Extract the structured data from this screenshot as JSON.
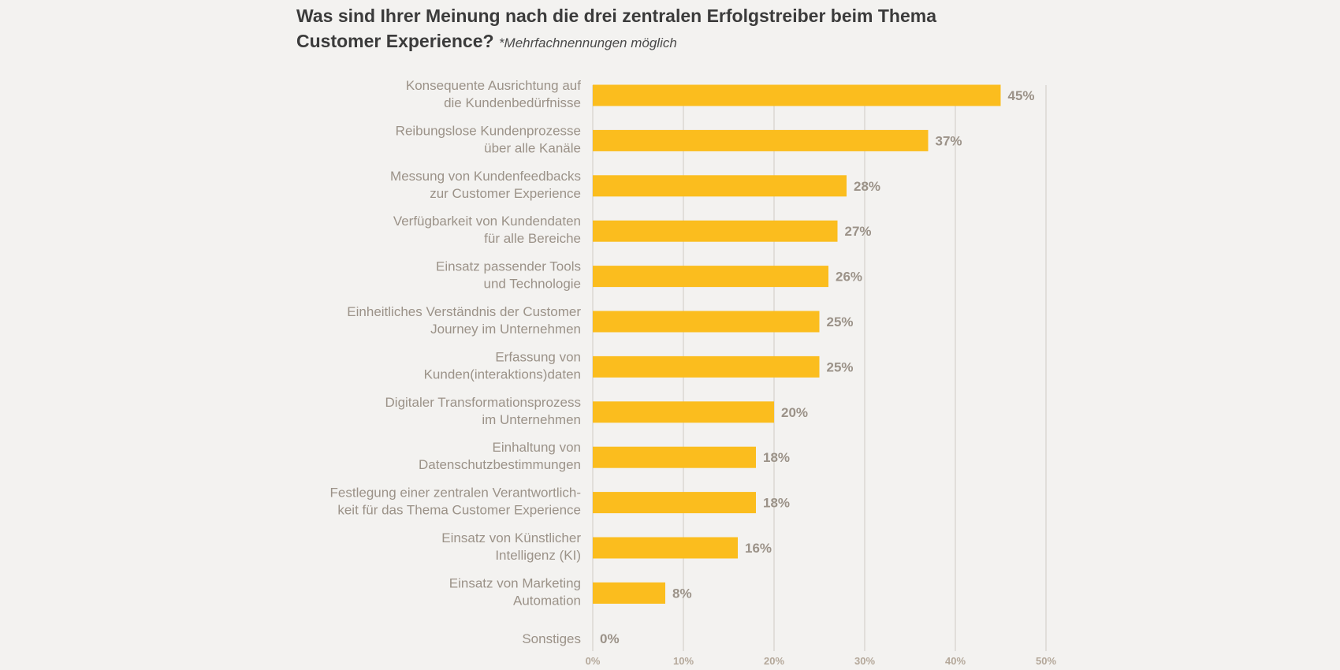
{
  "chart_data": {
    "type": "bar",
    "orientation": "horizontal",
    "title": "Was sind Ihrer Meinung nach die drei zentralen Erfolgstreiber beim Thema Customer Experience?",
    "subtitle": "*Mehrfachnennungen möglich",
    "categories": [
      [
        "Konsequente Ausrichtung auf",
        "die Kundenbedürfnisse"
      ],
      [
        "Reibungslose Kundenprozesse",
        "über alle Kanäle"
      ],
      [
        "Messung von Kundenfeedbacks",
        "zur Customer Experience"
      ],
      [
        "Verfügbarkeit von Kundendaten",
        "für alle Bereiche"
      ],
      [
        "Einsatz passender Tools",
        "und Technologie"
      ],
      [
        "Einheitliches Verständnis der Customer",
        "Journey im Unternehmen"
      ],
      [
        "Erfassung von",
        "Kunden(interaktions)daten"
      ],
      [
        "Digitaler Transformationsprozess",
        "im Unternehmen"
      ],
      [
        "Einhaltung von",
        "Datenschutzbestimmungen"
      ],
      [
        "Festlegung einer zentralen Verantwortlich-",
        "keit für das Thema Customer Experience"
      ],
      [
        "Einsatz von Künstlicher",
        "Intelligenz (KI)"
      ],
      [
        "Einsatz von Marketing",
        "Automation"
      ],
      [
        "Sonstiges"
      ]
    ],
    "values": [
      45,
      37,
      28,
      27,
      26,
      25,
      25,
      20,
      18,
      18,
      16,
      8,
      0
    ],
    "value_labels": [
      "45%",
      "37%",
      "28%",
      "27%",
      "26%",
      "25%",
      "25%",
      "20%",
      "18%",
      "18%",
      "16%",
      "8%",
      "0%"
    ],
    "x_ticks": [
      0,
      10,
      20,
      30,
      40,
      50
    ],
    "x_tick_labels": [
      "0%",
      "10%",
      "20%",
      "30%",
      "40%",
      "50%"
    ],
    "xlim": [
      0,
      50
    ],
    "grid": true,
    "colors": {
      "bar": "#fbbd1e",
      "grid": "#cfcac3",
      "category_text": "#9b9288",
      "value_text": "#9b9288",
      "tick_text": "#b4a89a",
      "title_text": "#3b3b3b"
    }
  }
}
